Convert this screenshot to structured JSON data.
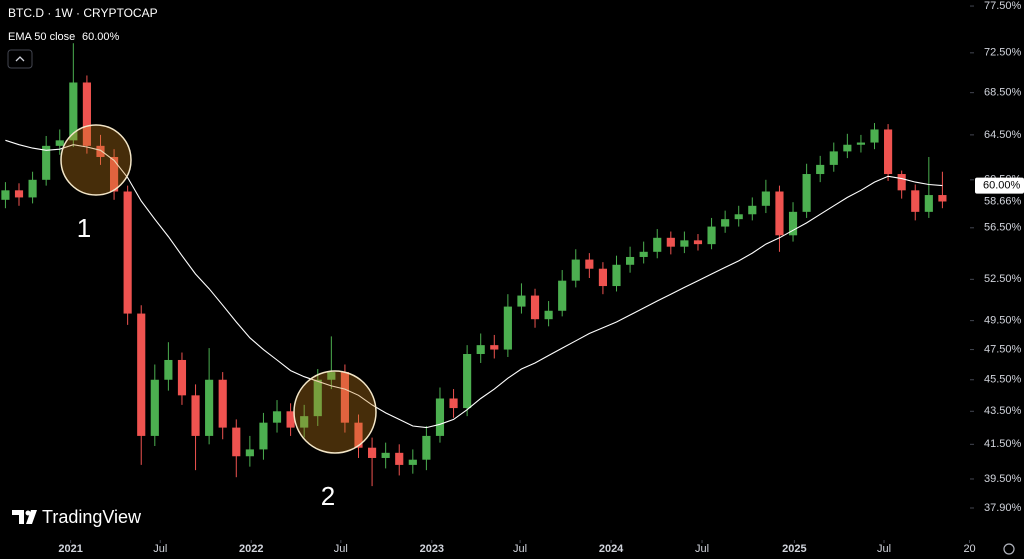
{
  "header": {
    "symbol": "BTC.D · 1W · CRYPTOCAP"
  },
  "annotations": [
    "1",
    "2"
  ],
  "branding": "TradingView",
  "chart_data": {
    "type": "candlestick",
    "up_color": "#4caf50",
    "down_color": "#ef5350",
    "log_scale": true,
    "grid": false,
    "open": [
      58.8,
      59.6,
      59.0,
      60.5,
      63.5,
      64.0,
      69.5,
      63.5,
      62.5,
      59.5,
      50.0,
      42.0,
      45.5,
      46.8,
      44.5,
      42.0,
      45.5,
      42.5,
      40.8,
      41.2,
      42.8,
      43.5,
      42.5,
      43.2,
      45.5,
      46.0,
      42.8,
      41.3,
      40.7,
      41.0,
      40.3,
      40.6,
      42.0,
      44.3,
      43.7,
      47.2,
      47.8,
      47.5,
      50.5,
      51.3,
      49.6,
      50.2,
      52.4,
      54.0,
      53.3,
      52.0,
      53.6,
      54.2,
      54.6,
      55.7,
      55.0,
      55.5,
      55.2,
      56.6,
      57.2,
      57.6,
      58.3,
      59.5,
      55.9,
      57.8,
      61.0,
      61.8,
      63.0,
      63.6,
      63.8,
      65.0,
      61.0,
      59.6,
      57.8,
      59.2
    ],
    "high": [
      60.3,
      60.2,
      61.2,
      64.4,
      65.0,
      73.5,
      70.2,
      64.5,
      63.2,
      60.0,
      50.6,
      46.5,
      48.0,
      47.3,
      45.2,
      47.6,
      46.0,
      43.0,
      42.0,
      43.4,
      44.2,
      44.0,
      43.9,
      46.2,
      48.4,
      46.5,
      43.3,
      41.9,
      41.6,
      41.5,
      41.2,
      42.6,
      45.0,
      44.9,
      47.8,
      48.6,
      48.5,
      51.4,
      52.2,
      51.8,
      50.9,
      53.2,
      54.8,
      54.5,
      53.8,
      54.3,
      55.0,
      55.4,
      56.4,
      56.2,
      56.2,
      56.0,
      57.3,
      57.9,
      58.3,
      59.0,
      60.5,
      60.0,
      58.6,
      61.9,
      62.6,
      63.8,
      64.6,
      64.5,
      65.6,
      65.5,
      61.3,
      60.1,
      62.5,
      61.2
    ],
    "low": [
      58.1,
      58.3,
      58.5,
      60.0,
      62.7,
      63.4,
      62.8,
      61.8,
      58.8,
      49.2,
      40.3,
      41.4,
      44.8,
      43.9,
      40.0,
      41.5,
      41.8,
      39.6,
      40.2,
      40.6,
      42.2,
      42.0,
      41.9,
      42.6,
      44.9,
      42.2,
      40.7,
      39.1,
      40.1,
      39.7,
      39.8,
      40.0,
      41.6,
      43.1,
      43.2,
      46.6,
      46.9,
      47.0,
      50.0,
      49.0,
      49.1,
      49.8,
      51.9,
      52.6,
      51.4,
      51.6,
      53.0,
      53.7,
      54.1,
      54.4,
      54.5,
      54.7,
      54.8,
      56.1,
      56.6,
      57.1,
      57.7,
      54.6,
      55.4,
      57.3,
      60.3,
      61.2,
      62.4,
      62.9,
      63.2,
      60.4,
      58.9,
      57.1,
      57.3,
      58.1
    ],
    "close": [
      59.6,
      59.0,
      60.5,
      63.5,
      64.0,
      69.5,
      63.5,
      62.5,
      59.5,
      50.0,
      42.0,
      45.5,
      46.8,
      44.5,
      42.0,
      45.5,
      42.5,
      40.8,
      41.2,
      42.8,
      43.5,
      42.5,
      43.2,
      45.5,
      46.0,
      42.8,
      41.3,
      40.7,
      41.0,
      40.3,
      40.6,
      42.0,
      44.3,
      43.7,
      47.2,
      47.8,
      47.5,
      50.5,
      51.3,
      49.6,
      50.2,
      52.4,
      54.0,
      53.3,
      52.0,
      53.6,
      54.2,
      54.6,
      55.7,
      55.0,
      55.5,
      55.2,
      56.6,
      57.2,
      57.6,
      58.3,
      59.5,
      55.9,
      57.8,
      61.0,
      61.8,
      63.0,
      63.6,
      63.8,
      65.0,
      61.0,
      59.6,
      57.8,
      59.2,
      58.66
    ],
    "ema": {
      "name": "EMA 50 close",
      "color": "#ffffff",
      "values": [
        64.0,
        63.6,
        63.3,
        63.1,
        63.2,
        63.6,
        63.4,
        63.1,
        62.2,
        60.7,
        58.7,
        57.2,
        55.8,
        54.3,
        52.9,
        51.8,
        50.6,
        49.4,
        48.3,
        47.5,
        46.8,
        46.1,
        45.7,
        45.4,
        45.1,
        44.9,
        44.5,
        43.9,
        43.4,
        43.0,
        42.6,
        42.5,
        42.7,
        43.0,
        43.6,
        44.3,
        44.9,
        45.6,
        46.2,
        46.6,
        47.1,
        47.6,
        48.1,
        48.6,
        49.0,
        49.4,
        49.9,
        50.4,
        50.9,
        51.4,
        51.9,
        52.4,
        52.9,
        53.4,
        53.9,
        54.5,
        55.2,
        55.7,
        56.3,
        56.9,
        57.6,
        58.3,
        59.0,
        59.6,
        60.3,
        60.8,
        60.6,
        60.3,
        60.1,
        60.0
      ]
    },
    "ema_last": {
      "value": 60.0,
      "label": "60.00%"
    },
    "last_price": {
      "value": 58.66,
      "label": "58.66%"
    },
    "xlim": [
      -0.4,
      71.4
    ],
    "xticks": [
      {
        "value": 4.8,
        "label": "2021"
      },
      {
        "value": 11.4,
        "label": "Jul"
      },
      {
        "value": 18.1,
        "label": "2022"
      },
      {
        "value": 24.7,
        "label": "Jul"
      },
      {
        "value": 31.4,
        "label": "2023"
      },
      {
        "value": 37.9,
        "label": "Jul"
      },
      {
        "value": 44.6,
        "label": "2024"
      },
      {
        "value": 51.3,
        "label": "Jul"
      },
      {
        "value": 58.1,
        "label": "2025"
      },
      {
        "value": 64.7,
        "label": "Jul"
      },
      {
        "value": 71.0,
        "label": "20"
      }
    ],
    "ylim": [
      36.21,
      78.17
    ],
    "yticks": [
      {
        "value": 77.5,
        "label": "77.50%"
      },
      {
        "value": 72.5,
        "label": "72.50%"
      },
      {
        "value": 68.5,
        "label": "68.50%"
      },
      {
        "value": 64.5,
        "label": "64.50%"
      },
      {
        "value": 60.5,
        "label": "60.50%"
      },
      {
        "value": 56.5,
        "label": "56.50%"
      },
      {
        "value": 52.5,
        "label": "52.50%"
      },
      {
        "value": 49.5,
        "label": "49.50%"
      },
      {
        "value": 47.5,
        "label": "47.50%"
      },
      {
        "value": 45.5,
        "label": "45.50%"
      },
      {
        "value": 43.5,
        "label": "43.50%"
      },
      {
        "value": 41.5,
        "label": "41.50%"
      },
      {
        "value": 39.5,
        "label": "39.50%"
      },
      {
        "value": 37.9,
        "label": "37.90%"
      }
    ]
  }
}
